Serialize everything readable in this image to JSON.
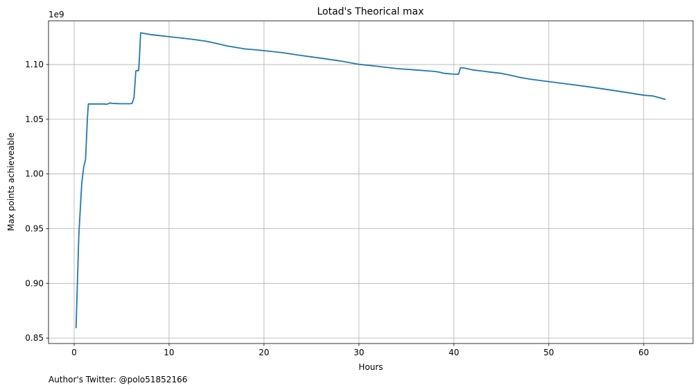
{
  "chart_data": {
    "type": "line",
    "title": "Lotad's Theorical max",
    "xlabel": "Hours",
    "ylabel": "Max points achieveable",
    "y_offset_label": "1e9",
    "footer": "Author's Twitter: @polo51852166",
    "xlim": [
      -2.7,
      65.2
    ],
    "ylim": [
      0.845,
      1.14
    ],
    "x_ticks": [
      0,
      10,
      20,
      30,
      40,
      50,
      60
    ],
    "x_tick_labels": [
      "0",
      "10",
      "20",
      "30",
      "40",
      "50",
      "60"
    ],
    "y_ticks": [
      0.85,
      0.9,
      0.95,
      1.0,
      1.05,
      1.1
    ],
    "y_tick_labels": [
      "0.85",
      "0.90",
      "0.95",
      "1.00",
      "1.05",
      "1.10"
    ],
    "grid": true,
    "line_color": "#1f77b4",
    "series": [
      {
        "x": [
          0.2,
          0.5,
          0.8,
          1.0,
          1.2,
          1.4,
          1.5,
          2.0,
          3.0,
          3.5,
          3.8,
          4.0,
          4.3,
          5.0,
          5.9,
          6.1,
          6.3,
          6.4,
          6.5,
          6.6,
          6.8,
          6.9,
          7.0,
          8.0,
          9.0,
          10.0,
          11.0,
          12.0,
          13.0,
          14.0,
          15.0,
          16.0,
          17.0,
          18.0,
          19.0,
          20.0,
          22.0,
          24.0,
          26.0,
          28.0,
          30.0,
          32.0,
          34.0,
          36.0,
          38.0,
          38.4,
          39.0,
          40.0,
          40.5,
          40.7,
          41.0,
          42.0,
          43.0,
          44.0,
          45.0,
          46.0,
          47.0,
          48.0,
          50.0,
          52.0,
          54.0,
          56.0,
          58.0,
          60.0,
          61.0,
          62.3
        ],
        "y": [
          0.859,
          0.945,
          0.991,
          1.006,
          1.013,
          1.052,
          1.064,
          1.064,
          1.064,
          1.0638,
          1.065,
          1.0645,
          1.0644,
          1.0642,
          1.0642,
          1.0645,
          1.0695,
          1.081,
          1.094,
          1.0945,
          1.0945,
          1.11,
          1.129,
          1.1275,
          1.1265,
          1.1255,
          1.1245,
          1.1236,
          1.1225,
          1.1212,
          1.1193,
          1.1172,
          1.1157,
          1.1143,
          1.1136,
          1.1127,
          1.1108,
          1.1082,
          1.1059,
          1.1033,
          1.1002,
          1.0984,
          1.0963,
          1.0951,
          1.0937,
          1.0932,
          1.092,
          1.0912,
          1.0913,
          1.0971,
          1.097,
          1.0951,
          1.0941,
          1.0929,
          1.092,
          1.0902,
          1.0882,
          1.0867,
          1.0844,
          1.0822,
          1.0799,
          1.0774,
          1.0748,
          1.072,
          1.0712,
          1.0681
        ]
      }
    ]
  }
}
